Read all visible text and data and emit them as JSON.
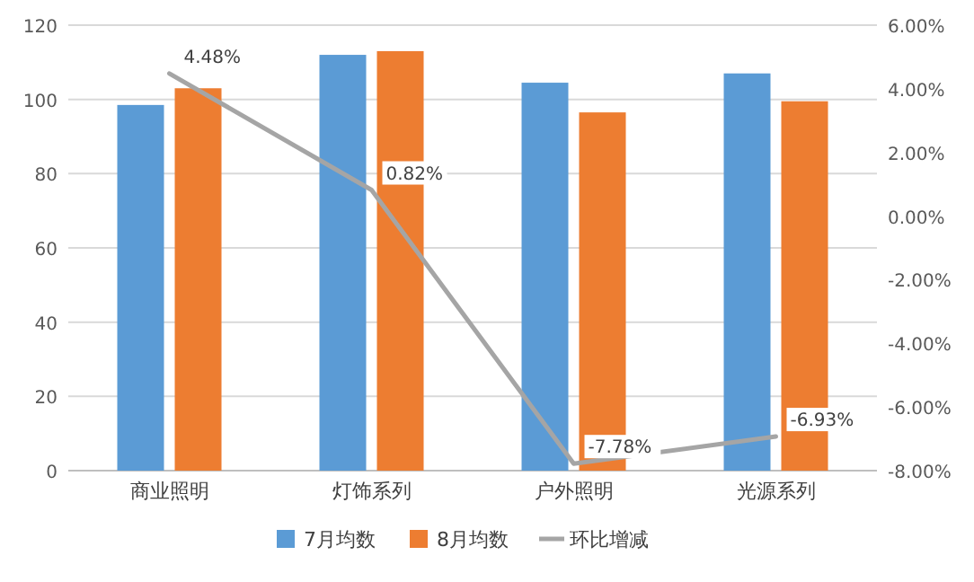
{
  "chart_data": {
    "type": "bar",
    "categories": [
      "商业照明",
      "灯饰系列",
      "户外照明",
      "光源系列"
    ],
    "series": [
      {
        "name": "7月均数",
        "color": "#5b9bd5",
        "values": [
          98.5,
          112,
          104.5,
          107
        ]
      },
      {
        "name": "8月均数",
        "color": "#ed7d31",
        "values": [
          103,
          113,
          96.5,
          99.5
        ]
      },
      {
        "name": "环比增减",
        "color": "#a5a5a5",
        "type": "line",
        "axis": "y2",
        "marker": "none",
        "values": [
          4.48,
          0.82,
          -7.78,
          -6.93
        ],
        "value_labels": [
          "4.48%",
          "0.82%",
          "-7.78%",
          "-6.93%"
        ]
      }
    ],
    "ylim": [
      0,
      120
    ],
    "yticks": [
      0,
      20,
      40,
      60,
      80,
      100,
      120
    ],
    "y2lim": [
      -8,
      6
    ],
    "y2ticks": [
      {
        "value": -8,
        "label": "-8.00%"
      },
      {
        "value": -6,
        "label": "-6.00%"
      },
      {
        "value": -4,
        "label": "-4.00%"
      },
      {
        "value": -2,
        "label": "-2.00%"
      },
      {
        "value": 0,
        "label": "0.00%"
      },
      {
        "value": 2,
        "label": "2.00%"
      },
      {
        "value": 4,
        "label": "4.00%"
      },
      {
        "value": 6,
        "label": "6.00%"
      }
    ],
    "grid": "y",
    "legend": "bottom"
  }
}
